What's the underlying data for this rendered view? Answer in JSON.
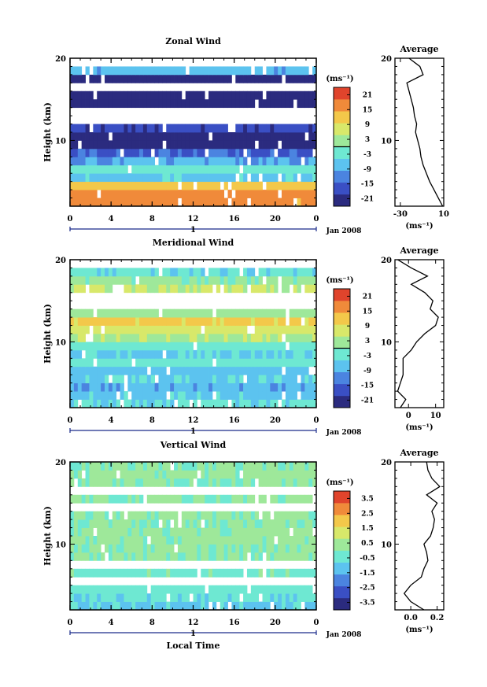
{
  "chart_data": [
    {
      "type": "heatmap",
      "title": "Zonal Wind",
      "ylabel": "Height (km)",
      "xticks": [
        "0",
        "4",
        "8",
        "12",
        "16",
        "20",
        "0"
      ],
      "yticks": [
        "10",
        "20"
      ],
      "day_label": "1",
      "date_label": "Jan 2008",
      "units": "(ms⁻¹)",
      "xlim": [
        0,
        24
      ],
      "ylim": [
        2,
        20
      ],
      "colorbar": {
        "ticks": [
          "21",
          "15",
          "9",
          "3",
          "-3",
          "-9",
          "-15",
          "-21"
        ],
        "range": [
          -24,
          24
        ]
      },
      "rows": [
        {
          "h": 2.5,
          "v": 16
        },
        {
          "h": 3.5,
          "v": 17
        },
        {
          "h": 4.5,
          "v": 12
        },
        {
          "h": 5.5,
          "v": -6
        },
        {
          "h": 6.5,
          "v": -3
        },
        {
          "h": 7.5,
          "v": -9
        },
        {
          "h": 8.5,
          "v": -15
        },
        {
          "h": 9.5,
          "v": -21
        },
        {
          "h": 10.5,
          "v": -23
        },
        {
          "h": 11.5,
          "v": -18
        },
        {
          "h": 12.5,
          "v": null
        },
        {
          "h": 13.5,
          "v": null
        },
        {
          "h": 14.5,
          "v": -22
        },
        {
          "h": 15.5,
          "v": -21
        },
        {
          "h": 16.5,
          "v": null
        },
        {
          "h": 17.5,
          "v": -23
        },
        {
          "h": 18.5,
          "v": -8
        },
        {
          "h": 19.5,
          "v": null
        }
      ],
      "average": {
        "title": "Average",
        "xticks": [
          "-30",
          "10"
        ],
        "xlim": [
          -35,
          10
        ],
        "xlabel": "(ms⁻¹)",
        "h": [
          2,
          3,
          4,
          5,
          6,
          7,
          8,
          9,
          10,
          11,
          12,
          13,
          14,
          15,
          16,
          17,
          18,
          19,
          20
        ],
        "v": [
          9,
          5,
          1,
          -3,
          -6,
          -9,
          -11,
          -12,
          -14,
          -16,
          -15,
          -17,
          -18,
          -20,
          -22,
          -24,
          -9,
          -12,
          -22
        ]
      }
    },
    {
      "type": "heatmap",
      "title": "Meridional Wind",
      "ylabel": "Height (km)",
      "xticks": [
        "0",
        "4",
        "8",
        "12",
        "16",
        "20",
        "0"
      ],
      "yticks": [
        "10",
        "20"
      ],
      "day_label": "1",
      "date_label": "Jan 2008",
      "units": "(ms⁻¹)",
      "xlim": [
        0,
        24
      ],
      "ylim": [
        2,
        20
      ],
      "colorbar": {
        "ticks": [
          "21",
          "15",
          "9",
          "3",
          "-3",
          "-9",
          "-15",
          "-21"
        ],
        "range": [
          -24,
          24
        ]
      },
      "rows": [
        {
          "h": 2.5,
          "v": -4
        },
        {
          "h": 3.5,
          "v": -6
        },
        {
          "h": 4.5,
          "v": -9
        },
        {
          "h": 5.5,
          "v": -5
        },
        {
          "h": 6.5,
          "v": -7
        },
        {
          "h": 7.5,
          "v": -3
        },
        {
          "h": 8.5,
          "v": -5
        },
        {
          "h": 9.5,
          "v": -2
        },
        {
          "h": 10.5,
          "v": 4
        },
        {
          "h": 11.5,
          "v": 7
        },
        {
          "h": 12.5,
          "v": 11
        },
        {
          "h": 13.5,
          "v": 2
        },
        {
          "h": 14.5,
          "v": null
        },
        {
          "h": 15.5,
          "v": null
        },
        {
          "h": 16.5,
          "v": 5
        },
        {
          "h": 17.5,
          "v": 1
        },
        {
          "h": 18.5,
          "v": -4
        },
        {
          "h": 19.5,
          "v": null
        }
      ],
      "average": {
        "title": "Average",
        "xticks": [
          "0",
          "10"
        ],
        "xlim": [
          -5,
          13
        ],
        "xlabel": "(ms⁻¹)",
        "h": [
          2,
          3,
          4,
          5,
          6,
          7,
          8,
          9,
          10,
          11,
          12,
          13,
          14,
          15,
          16,
          17,
          18,
          19,
          20
        ],
        "v": [
          -3,
          -1,
          -4,
          -3,
          -2,
          -2,
          -2,
          1,
          3,
          6,
          10,
          11,
          8,
          9,
          6,
          1,
          7,
          1,
          -4
        ]
      }
    },
    {
      "type": "heatmap",
      "title": "Vertical Wind",
      "ylabel": "Height (km)",
      "xlabel": "Local Time",
      "xticks": [
        "0",
        "4",
        "8",
        "12",
        "16",
        "20",
        "0"
      ],
      "yticks": [
        "10",
        "20"
      ],
      "day_label": "1",
      "date_label": "Jan 2008",
      "units": "(ms⁻¹)",
      "xlim": [
        0,
        24
      ],
      "ylim": [
        2,
        20
      ],
      "colorbar": {
        "ticks": [
          "3.5",
          "2.5",
          "1.5",
          "0.5",
          "-0.5",
          "-1.5",
          "-2.5",
          "-3.5"
        ],
        "range": [
          -4,
          4
        ]
      },
      "rows": [
        {
          "h": 2.5,
          "v": -0.9
        },
        {
          "h": 3.5,
          "v": -0.7
        },
        {
          "h": 4.5,
          "v": -0.4
        },
        {
          "h": 5.5,
          "v": null
        },
        {
          "h": 6.5,
          "v": -0.2
        },
        {
          "h": 7.5,
          "v": null
        },
        {
          "h": 8.5,
          "v": 0.1
        },
        {
          "h": 9.5,
          "v": 0.1
        },
        {
          "h": 10.5,
          "v": 0.2
        },
        {
          "h": 11.5,
          "v": 0.2
        },
        {
          "h": 12.5,
          "v": 0.1
        },
        {
          "h": 13.5,
          "v": 0.2
        },
        {
          "h": 14.5,
          "v": null
        },
        {
          "h": 15.5,
          "v": 0.1
        },
        {
          "h": 16.5,
          "v": null
        },
        {
          "h": 17.5,
          "v": 0.1
        },
        {
          "h": 18.5,
          "v": 0.2
        },
        {
          "h": 19.5,
          "v": 0.1
        }
      ],
      "average": {
        "title": "Average",
        "xticks": [
          "0.0",
          "0.2"
        ],
        "xlim": [
          -0.12,
          0.25
        ],
        "xlabel": "(ms⁻¹)",
        "h": [
          2,
          3,
          4,
          5,
          6,
          7,
          8,
          9,
          10,
          11,
          12,
          13,
          14,
          15,
          16,
          17,
          18,
          19,
          20
        ],
        "v": [
          0.1,
          0.0,
          -0.05,
          0.0,
          0.08,
          0.1,
          0.13,
          0.12,
          0.1,
          0.15,
          0.17,
          0.18,
          0.16,
          0.2,
          0.12,
          0.22,
          0.16,
          0.13,
          0.12
        ]
      }
    }
  ]
}
